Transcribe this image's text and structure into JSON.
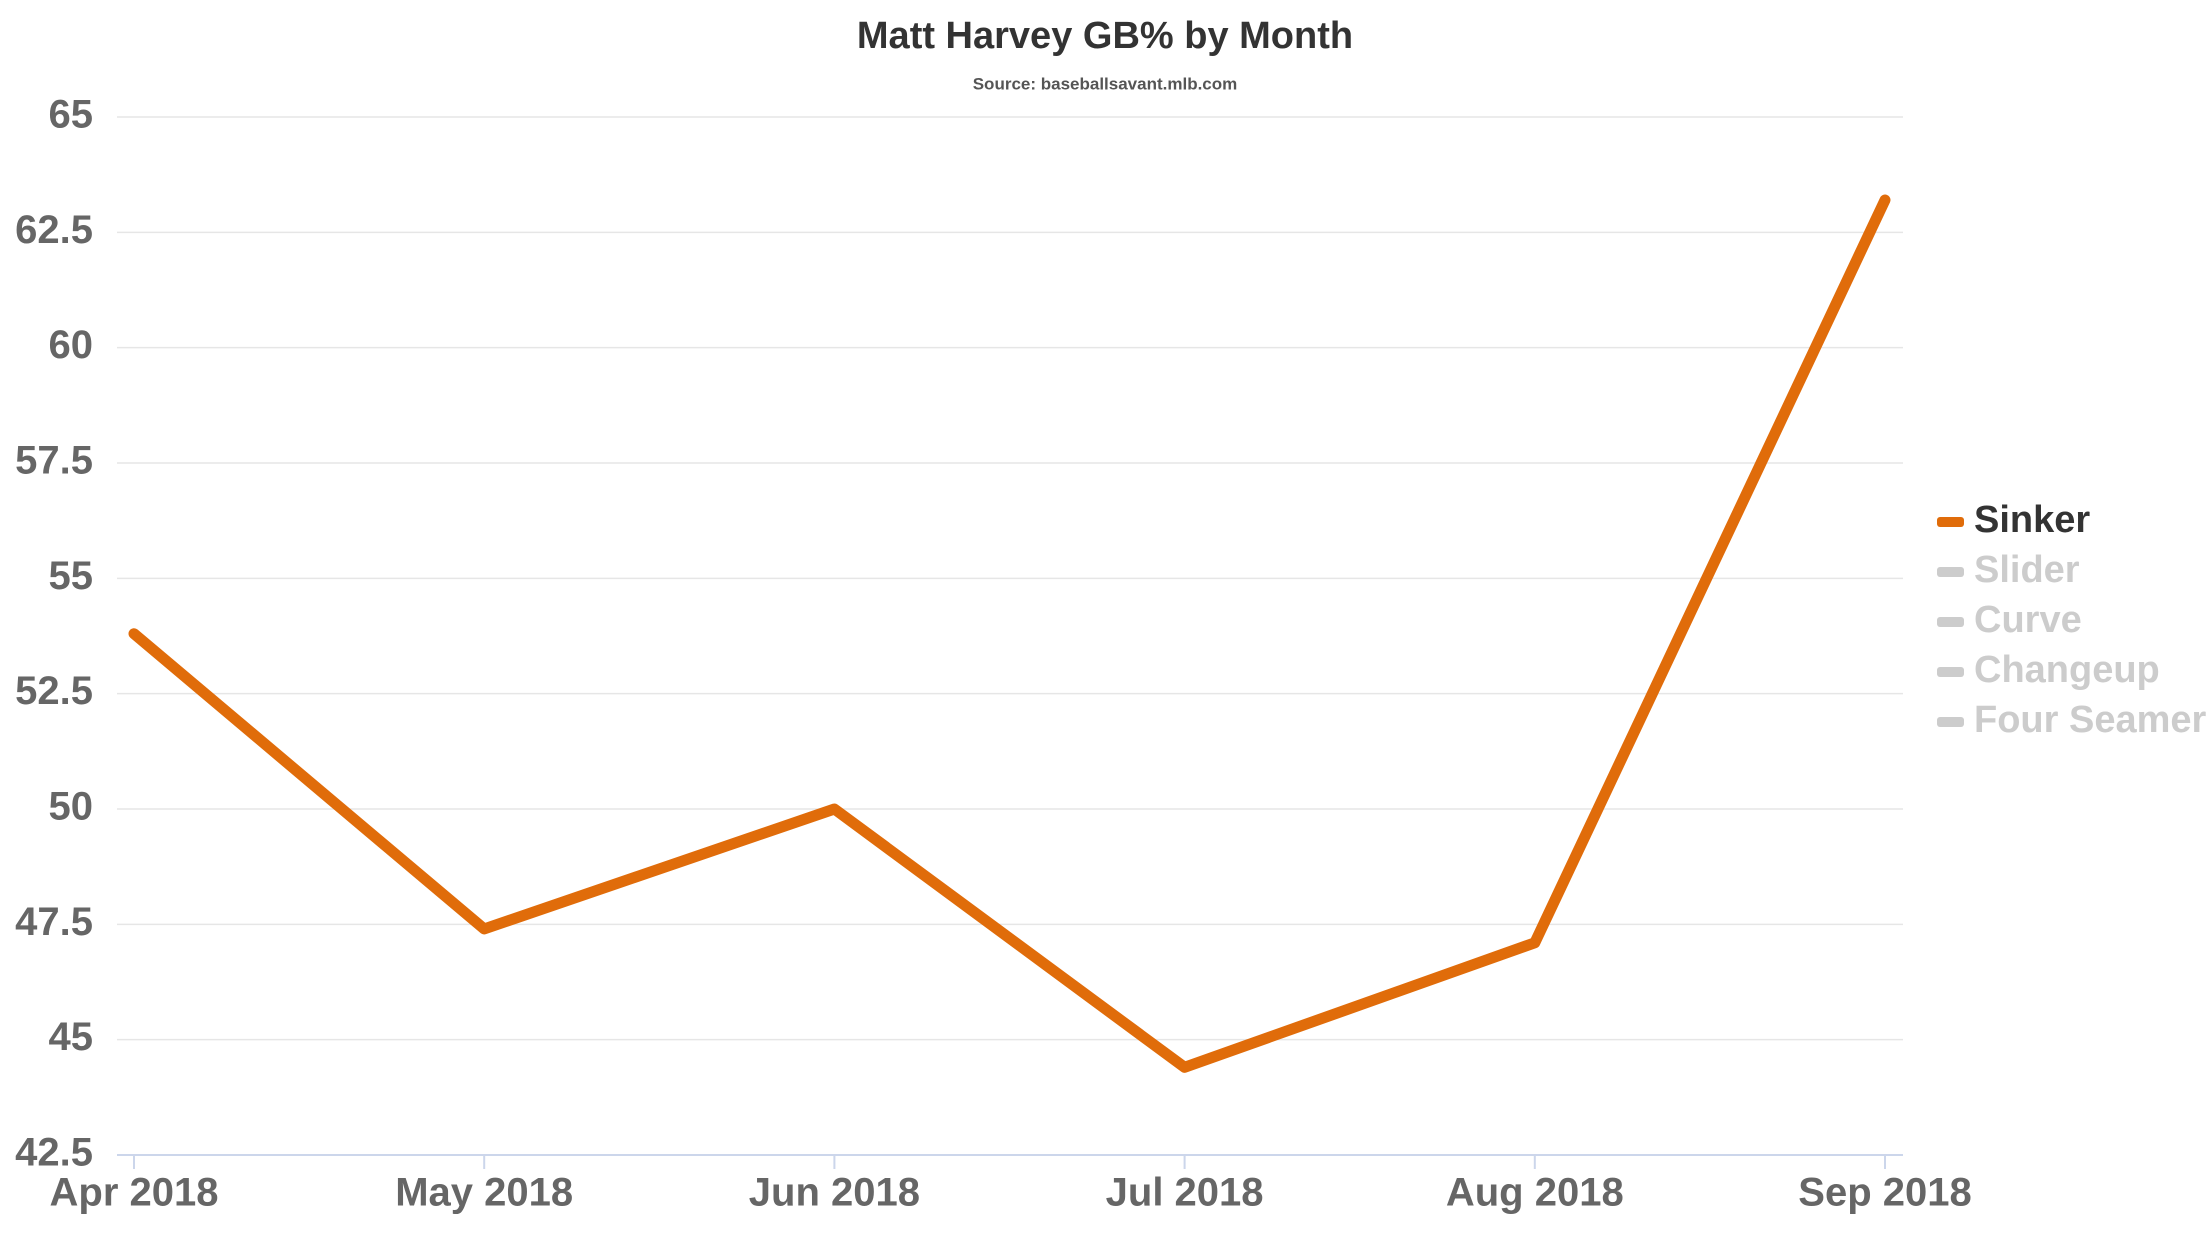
{
  "chart_data": {
    "type": "line",
    "title": "Matt Harvey GB% by Month",
    "subtitle": "Source: baseballsavant.mlb.com",
    "categories": [
      "Apr 2018",
      "May 2018",
      "Jun 2018",
      "Jul 2018",
      "Aug 2018",
      "Sep 2018"
    ],
    "series": [
      {
        "name": "Sinker",
        "color": "#e06c0a",
        "visible": true,
        "values": [
          53.8,
          47.4,
          50.0,
          44.4,
          47.1,
          63.2
        ]
      },
      {
        "name": "Slider",
        "color": "#cccccc",
        "visible": false,
        "values": [
          null,
          null,
          null,
          null,
          null,
          null
        ]
      },
      {
        "name": "Curve",
        "color": "#cccccc",
        "visible": false,
        "values": [
          null,
          null,
          null,
          null,
          null,
          null
        ]
      },
      {
        "name": "Changeup",
        "color": "#cccccc",
        "visible": false,
        "values": [
          null,
          null,
          null,
          null,
          null,
          null
        ]
      },
      {
        "name": "Four Seamer",
        "color": "#cccccc",
        "visible": false,
        "values": [
          null,
          null,
          null,
          null,
          null,
          null
        ]
      }
    ],
    "ylim": [
      42.5,
      65
    ],
    "yticks": [
      42.5,
      45,
      47.5,
      50,
      52.5,
      55,
      57.5,
      60,
      62.5,
      65
    ],
    "grid": true,
    "legend": "right"
  }
}
